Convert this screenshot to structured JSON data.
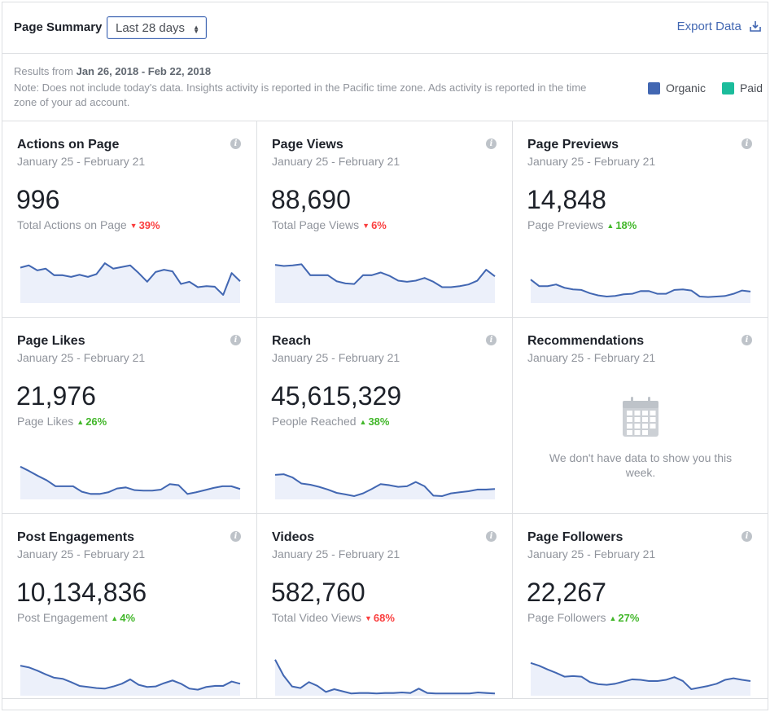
{
  "header": {
    "title": "Page Summary",
    "range_value": "Last 28 days",
    "export_label": "Export Data"
  },
  "info": {
    "results_prefix": "Results from",
    "results_range": "Jan 26, 2018 - Feb 22, 2018",
    "note": "Note: Does not include today's data. Insights activity is reported in the Pacific time zone. Ads activity is reported in the time zone of your ad account."
  },
  "legend": {
    "organic_label": "Organic",
    "paid_label": "Paid",
    "organic_color": "#4267b2",
    "paid_color": "#1bbc9b"
  },
  "cards": [
    {
      "title": "Actions on Page",
      "date": "January 25 - February 21",
      "value": "996",
      "sub": "Total Actions on Page",
      "trend": "39%",
      "direction": "down",
      "icon": "info-icon",
      "series": [
        0.62,
        0.66,
        0.57,
        0.6,
        0.48,
        0.48,
        0.45,
        0.49,
        0.45,
        0.5,
        0.7,
        0.6,
        0.63,
        0.66,
        0.52,
        0.36,
        0.54,
        0.58,
        0.55,
        0.32,
        0.36,
        0.26,
        0.28,
        0.27,
        0.12,
        0.52,
        0.37
      ]
    },
    {
      "title": "Page Views",
      "date": "January 25 - February 21",
      "value": "88,690",
      "sub": "Total Page Views",
      "trend": "6%",
      "direction": "down",
      "icon": "info-icon",
      "series": [
        0.67,
        0.65,
        0.66,
        0.68,
        0.48,
        0.48,
        0.48,
        0.37,
        0.33,
        0.32,
        0.48,
        0.48,
        0.53,
        0.47,
        0.38,
        0.36,
        0.38,
        0.43,
        0.36,
        0.26,
        0.26,
        0.28,
        0.31,
        0.38,
        0.58,
        0.46
      ]
    },
    {
      "title": "Page Previews",
      "date": "January 25 - February 21",
      "value": "14,848",
      "sub": "Page Previews",
      "trend": "18%",
      "direction": "up",
      "icon": "info-icon",
      "series": [
        0.4,
        0.28,
        0.28,
        0.31,
        0.25,
        0.22,
        0.21,
        0.15,
        0.11,
        0.09,
        0.1,
        0.13,
        0.14,
        0.19,
        0.19,
        0.14,
        0.14,
        0.21,
        0.22,
        0.2,
        0.09,
        0.08,
        0.09,
        0.1,
        0.14,
        0.2,
        0.18
      ]
    },
    {
      "title": "Page Likes",
      "date": "January 25 - February 21",
      "value": "21,976",
      "sub": "Page Likes",
      "trend": "26%",
      "direction": "up",
      "icon": "info-icon",
      "series": [
        0.57,
        0.49,
        0.4,
        0.32,
        0.21,
        0.21,
        0.21,
        0.11,
        0.07,
        0.07,
        0.1,
        0.17,
        0.19,
        0.14,
        0.13,
        0.13,
        0.15,
        0.25,
        0.23,
        0.07,
        0.1,
        0.14,
        0.18,
        0.21,
        0.21,
        0.16
      ]
    },
    {
      "title": "Reach",
      "date": "January 25 - February 21",
      "value": "45,615,329",
      "sub": "People Reached",
      "trend": "38%",
      "direction": "up",
      "icon": "info-icon",
      "series": [
        0.42,
        0.43,
        0.37,
        0.26,
        0.24,
        0.2,
        0.15,
        0.09,
        0.06,
        0.03,
        0.08,
        0.16,
        0.25,
        0.23,
        0.2,
        0.21,
        0.29,
        0.21,
        0.04,
        0.03,
        0.08,
        0.1,
        0.12,
        0.15,
        0.15,
        0.16
      ]
    },
    {
      "title": "Recommendations",
      "date": "January 25 - February 21",
      "value": "",
      "sub": "",
      "trend": "",
      "direction": "none",
      "icon": "info-icon",
      "empty_message": "We don't have data to show you this week.",
      "empty_icon": "calendar-icon"
    },
    {
      "title": "Post Engagements",
      "date": "January 25 - February 21",
      "value": "10,134,836",
      "sub": "Post Engagement",
      "trend": "4%",
      "direction": "up",
      "icon": "info-icon",
      "series": [
        0.52,
        0.49,
        0.43,
        0.36,
        0.3,
        0.28,
        0.22,
        0.15,
        0.13,
        0.11,
        0.1,
        0.14,
        0.19,
        0.27,
        0.17,
        0.13,
        0.14,
        0.2,
        0.25,
        0.19,
        0.1,
        0.08,
        0.13,
        0.15,
        0.15,
        0.23,
        0.19
      ]
    },
    {
      "title": "Videos",
      "date": "January 25 - February 21",
      "value": "582,760",
      "sub": "Total Video Views",
      "trend": "68%",
      "direction": "down",
      "icon": "info-icon",
      "series": [
        0.63,
        0.34,
        0.14,
        0.11,
        0.22,
        0.15,
        0.04,
        0.09,
        0.05,
        0.01,
        0.02,
        0.02,
        0.01,
        0.02,
        0.02,
        0.03,
        0.02,
        0.1,
        0.02,
        0.01,
        0.01,
        0.01,
        0.01,
        0.01,
        0.03,
        0.02,
        0.01
      ]
    },
    {
      "title": "Page Followers",
      "date": "January 25 - February 21",
      "value": "22,267",
      "sub": "Page Followers",
      "trend": "27%",
      "direction": "up",
      "icon": "info-icon",
      "series": [
        0.57,
        0.52,
        0.45,
        0.39,
        0.32,
        0.33,
        0.32,
        0.22,
        0.18,
        0.17,
        0.19,
        0.23,
        0.27,
        0.26,
        0.24,
        0.24,
        0.26,
        0.31,
        0.24,
        0.09,
        0.12,
        0.15,
        0.19,
        0.26,
        0.29,
        0.26,
        0.24
      ]
    }
  ]
}
